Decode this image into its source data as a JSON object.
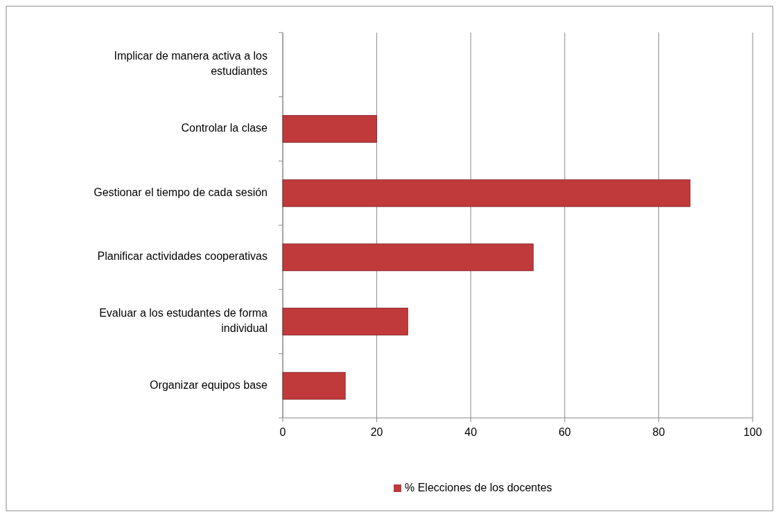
{
  "chart_data": {
    "type": "bar",
    "orientation": "horizontal",
    "categories": [
      "Implicar de manera activa a los estudiantes",
      "Controlar la clase",
      "Gestionar el tiempo de cada sesión",
      "Planificar actividades cooperativas",
      "Evaluar a los estudantes de forma individual",
      "Organizar equipos base"
    ],
    "series": [
      {
        "name": "% Elecciones de los docentes",
        "color": "#c0393b",
        "values": [
          0,
          20,
          86.7,
          53.3,
          26.6,
          13.3
        ]
      }
    ],
    "xlim": [
      0,
      100
    ],
    "xticks": [
      0,
      20,
      40,
      60,
      80,
      100
    ],
    "grid": "x",
    "legend": "bottom"
  }
}
